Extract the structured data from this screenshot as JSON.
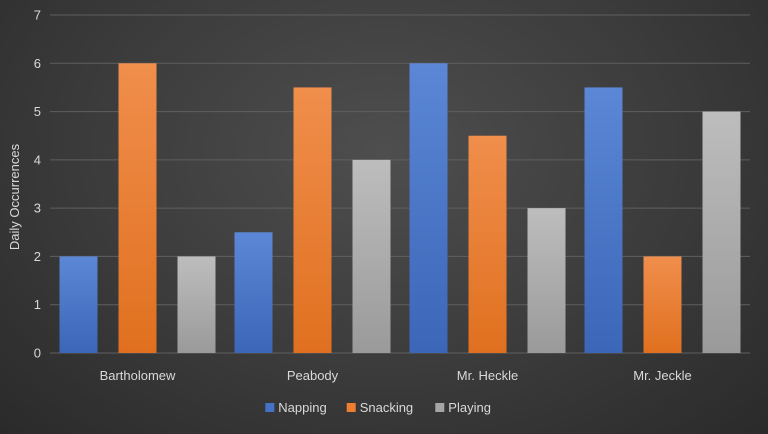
{
  "chart_data": {
    "type": "bar",
    "title": "",
    "xlabel": "",
    "ylabel": "Daily Occurrences",
    "categories": [
      "Bartholomew",
      "Peabody",
      "Mr. Heckle",
      "Mr. Jeckle"
    ],
    "series": [
      {
        "name": "Napping",
        "color": "#4472c4",
        "values": [
          2,
          2.5,
          6,
          5.5
        ]
      },
      {
        "name": "Snacking",
        "color": "#ed7d31",
        "values": [
          6,
          5.5,
          4.5,
          2
        ]
      },
      {
        "name": "Playing",
        "color": "#a5a5a5",
        "values": [
          2,
          4,
          3,
          5
        ]
      }
    ],
    "ylim": [
      0,
      7
    ],
    "yticks": [
      0,
      1,
      2,
      3,
      4,
      5,
      6,
      7
    ],
    "grid": true,
    "legend": "bottom"
  }
}
